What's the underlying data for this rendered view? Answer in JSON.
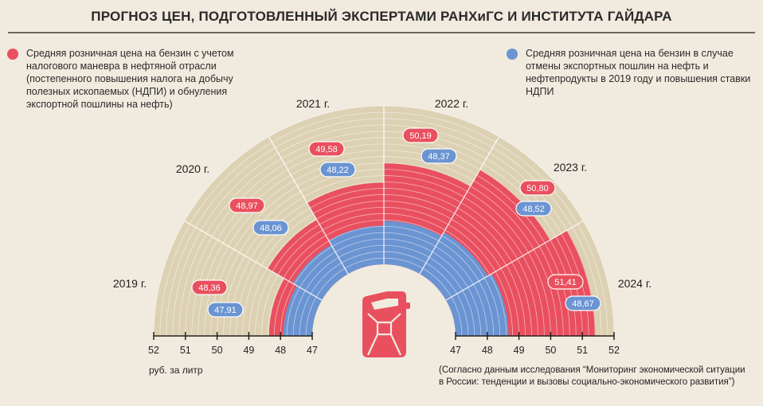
{
  "header": {
    "title": "ПРОГНОЗ ЦЕН, ПОДГОТОВЛЕННЫЙ ЭКСПЕРТАМИ РАНХиГС И ИНСТИТУТА ГАЙДАРА"
  },
  "legend": {
    "red": "Средняя розничная цена на бензин с учетом налогового маневра в нефтяной отрасли (постепенного повышения налога на добычу полезных ископаемых (НДПИ) и обнуления экспортной пошлины на нефть)",
    "blue": "Средняя розничная цена на бензин в случае отмены экспортных пошлин на нефть и нефтепродукты в 2019 году и повышения ставки НДПИ"
  },
  "unit_label": "руб. за литр",
  "source_note": "(Согласно данным исследования “Мониторинг экономической ситуации в России: тенденции и вызовы социально-экономического развития”)",
  "colors": {
    "red": "#e9505f",
    "blue": "#6b94d2",
    "sector": "#ddd1b4",
    "background": "#f1ebdf"
  },
  "icon": "jerry-can-icon",
  "chart_data": {
    "type": "polar-bar",
    "categories": [
      "2019 г.",
      "2020 г.",
      "2021 г.",
      "2022 г.",
      "2023 г.",
      "2024 г."
    ],
    "series": [
      {
        "name": "Средняя розничная цена на бензин с учетом налогового маневра",
        "color": "#e9505f",
        "values": [
          48.36,
          48.97,
          49.58,
          50.19,
          50.8,
          51.41
        ],
        "labels": [
          "48,36",
          "48,97",
          "49,58",
          "50,19",
          "50,80",
          "51,41"
        ]
      },
      {
        "name": "Средняя розничная цена на бензин в случае отмены экспортных пошлин",
        "color": "#6b94d2",
        "values": [
          47.91,
          48.06,
          48.22,
          48.37,
          48.52,
          48.67
        ],
        "labels": [
          "47,91",
          "48,06",
          "48,22",
          "48,37",
          "48,52",
          "48,67"
        ]
      }
    ],
    "radial_axis": {
      "range": [
        47,
        52
      ],
      "ticks_left": [
        "52",
        "51",
        "50",
        "49",
        "48",
        "47"
      ],
      "ticks_right": [
        "47",
        "48",
        "49",
        "50",
        "51",
        "52"
      ],
      "label": "руб. за литр"
    }
  }
}
